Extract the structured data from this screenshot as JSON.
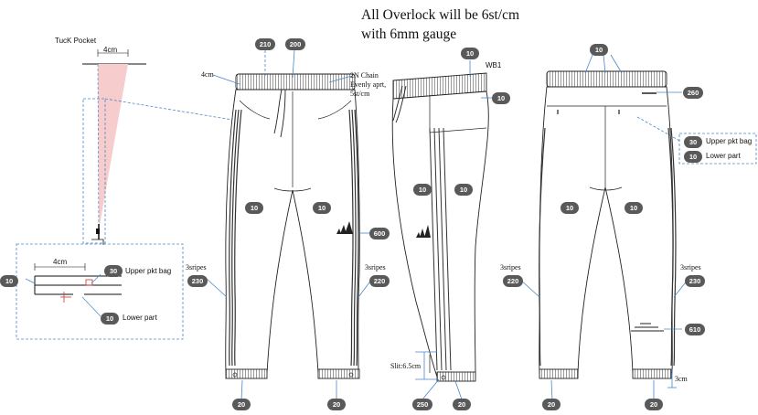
{
  "header": {
    "line1": "All Overlock will be 6st/cm",
    "line2": "with 6mm gauge"
  },
  "tuck_pocket": {
    "title": "TucK Pocket",
    "width_top": "4cm",
    "width_detail": "4cm",
    "upper_label": "Upper pkt bag",
    "lower_label": "Lower part"
  },
  "front": {
    "waist_label": "4cm",
    "chain_lines": [
      "2N Chain",
      "Evenly aprt,",
      "5st/cm"
    ],
    "left_stripe_label": "3sripes",
    "right_stripe_label": "3sripes"
  },
  "side": {
    "wb_label": "WB1",
    "slit_label": "Slit:6.5cm"
  },
  "back": {
    "left_stripe_label": "3sripes",
    "right_stripe_label": "3sripes",
    "upper_label": "Upper pkt bag",
    "lower_label": "Lower part",
    "cuff_label": "3cm"
  },
  "badges": {
    "tp_10": "10",
    "tp_30": "30",
    "tp_10b": "10",
    "f_210": "210",
    "f_200": "200",
    "f_10a": "10",
    "f_10b": "10",
    "f_600": "600",
    "f_230": "230",
    "f_220": "220",
    "f_20a": "20",
    "f_20b": "20",
    "s_10a": "10",
    "s_10b": "10",
    "s_10c": "10",
    "s_10d": "10",
    "s_250": "250",
    "s_20": "20",
    "b_10a": "10",
    "b_260": "260",
    "b_30": "30",
    "b_10b": "10",
    "b_10c": "10",
    "b_10d": "10",
    "b_220": "220",
    "b_230": "230",
    "b_610": "610",
    "b_20a": "20",
    "b_20b": "20"
  },
  "colors": {
    "badge": "#595959",
    "callout": "#4a86c8",
    "pocket_fill": "#f6cccc",
    "stripe": "#333333"
  }
}
